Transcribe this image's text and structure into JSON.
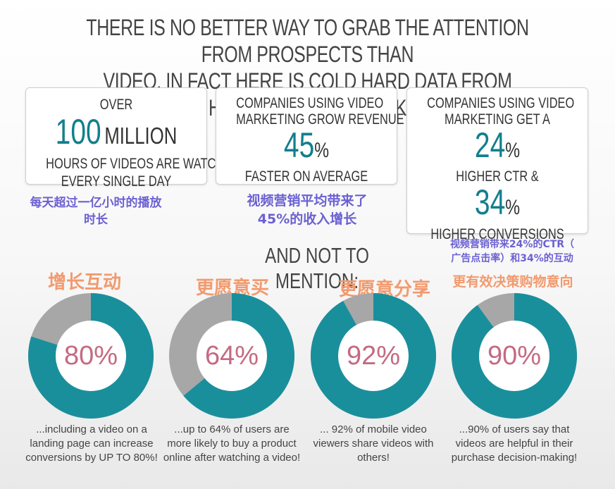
{
  "headline": {
    "line1": "THERE IS NO BETTER WAY TO GRAB THE ATTENTION FROM PROSPECTS THAN",
    "line2": "VIDEO, IN FACT HERE IS COLD HARD DATA FROM HUBSPOT & FACEBOOK"
  },
  "box1": {
    "over": "OVER",
    "big_value": "100",
    "big_unit": "MILLION",
    "line3": "HOURS OF VIDEOS ARE WATCHED",
    "line4": "EVERY SINGLE DAY",
    "cn": "每天超过一亿小时的播放时长"
  },
  "box2": {
    "line1": "COMPANIES USING VIDEO",
    "line2": "MARKETING GROW REVENUE",
    "big_value": "45",
    "big_suffix": "%",
    "line3": "FASTER ON AVERAGE",
    "cn_line1": "视频营销平均带来了",
    "cn_line2": "45%的收入增长"
  },
  "box3": {
    "line1": "COMPANIES USING VIDEO",
    "line2": "MARKETING GET A",
    "big1_value": "24",
    "big1_suffix": "%",
    "line3": "HIGHER CTR &",
    "big2_value": "34",
    "big2_suffix": "%",
    "line4": "HIGHER CONVERSIONS",
    "cn_line1": "视频营销带来24%的CTR（",
    "cn_line2": "广告点击率）和34%的互动"
  },
  "mention": "AND NOT TO MENTION:",
  "donuts": [
    {
      "cn_title": "增长互动",
      "value": 80,
      "label": "80%",
      "caption": "...including a video on a landing page can increase conversions by UP TO 80%!"
    },
    {
      "cn_title": "更愿意买",
      "value": 64,
      "label": "64%",
      "caption": "...up to 64% of users are more likely to buy a product online after watching a video!"
    },
    {
      "cn_title": "更愿意分享",
      "value": 92,
      "label": "92%",
      "caption": "... 92% of mobile video viewers share videos with others!"
    },
    {
      "cn_title": "更有效决策购物意向",
      "value": 90,
      "label": "90%",
      "caption": "...90% of users say that videos are helpful in their purchase decision-making!"
    }
  ],
  "colors": {
    "teal": "#1a8f9c",
    "gray": "#a7a7a7",
    "accent_blue": "#6b61d3",
    "accent_orange": "#f29a6e",
    "percent_pink": "#c46a82"
  }
}
